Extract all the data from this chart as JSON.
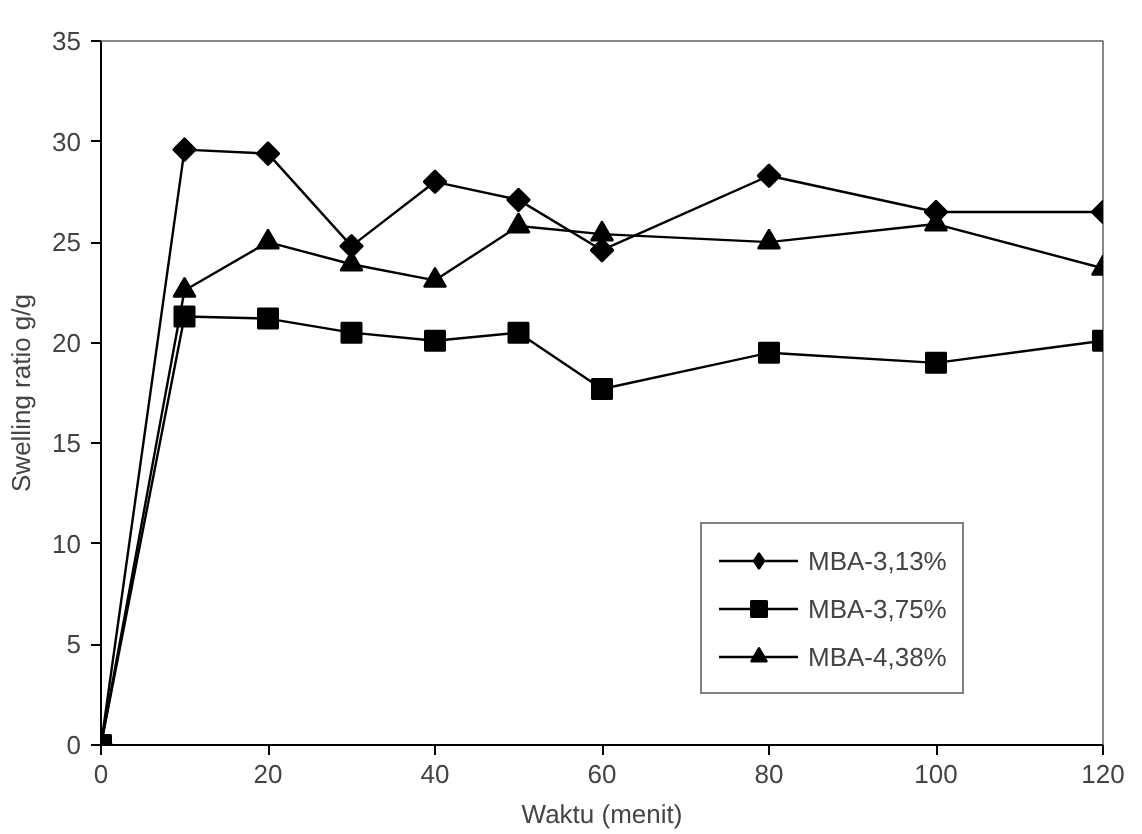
{
  "chart_data": {
    "type": "line",
    "xlabel": "Waktu (menit)",
    "ylabel": "Swelling ratio g/g",
    "x": [
      0,
      10,
      20,
      30,
      40,
      50,
      60,
      80,
      100,
      120
    ],
    "series": [
      {
        "name": "MBA-3,13%",
        "color": "#000000",
        "marker": "diamond",
        "values": [
          0,
          29.6,
          29.4,
          24.8,
          28.0,
          27.1,
          24.6,
          28.3,
          26.5,
          26.5
        ]
      },
      {
        "name": "MBA-3,75%",
        "color": "#000000",
        "marker": "square",
        "values": [
          0,
          21.3,
          21.2,
          20.5,
          20.1,
          20.5,
          17.7,
          19.5,
          19.0,
          20.1
        ]
      },
      {
        "name": "MBA-4,38%",
        "color": "#000000",
        "marker": "triangle",
        "values": [
          0,
          22.6,
          25.0,
          23.9,
          23.1,
          25.8,
          25.4,
          25.0,
          25.9,
          23.7
        ]
      }
    ],
    "xlim": [
      0,
      120
    ],
    "xticks": [
      0,
      20,
      40,
      60,
      80,
      100,
      120
    ],
    "ylim": [
      0,
      35
    ],
    "yticks": [
      0,
      5,
      10,
      15,
      20,
      25,
      30,
      35
    ],
    "grid": false,
    "legend": "bottom right",
    "line_style": "solid"
  }
}
